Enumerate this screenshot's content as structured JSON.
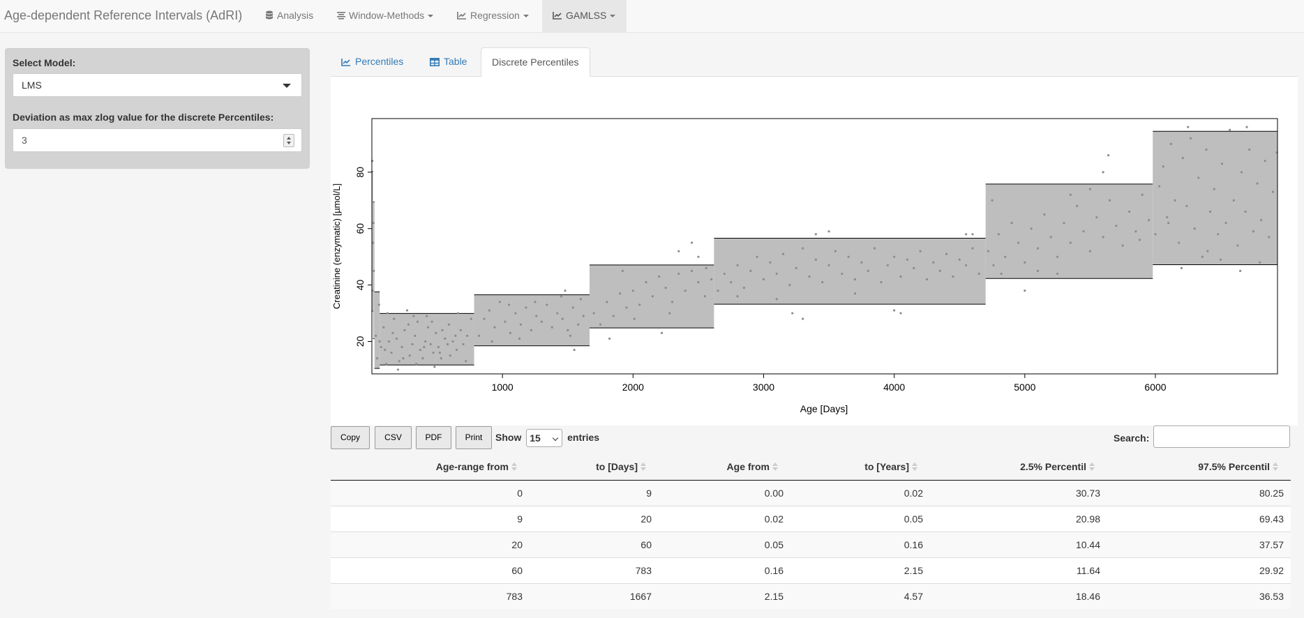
{
  "navbar": {
    "brand": "Age-dependent Reference Intervals (AdRI)",
    "items": [
      {
        "label": "Analysis",
        "icon": "database-icon"
      },
      {
        "label": "Window-Methods",
        "icon": "align-center-icon"
      },
      {
        "label": "Regression",
        "icon": "line-chart-icon"
      },
      {
        "label": "GAMLSS",
        "icon": "line-chart-icon"
      }
    ]
  },
  "sidebar": {
    "model_label": "Select Model:",
    "model_value": "LMS",
    "deviation_label": "Deviation as max zlog value for the discrete Percentiles:",
    "deviation_value": "3"
  },
  "tabs": [
    {
      "label": "Percentiles",
      "icon": "line-chart-icon"
    },
    {
      "label": "Table",
      "icon": "table-icon"
    },
    {
      "label": "Discrete Percentiles",
      "icon": ""
    }
  ],
  "chart_data": {
    "type": "scatter",
    "xlabel": "Age [Days]",
    "ylabel": "Creatinine (enzymatic) [µmol/L]",
    "xlim": [
      0,
      6935
    ],
    "ylim": [
      8.5,
      99
    ],
    "xticks": [
      "1000",
      "2000",
      "3000",
      "4000",
      "5000",
      "6000"
    ],
    "yticks": [
      "20",
      "40",
      "60",
      "80"
    ],
    "point_color": "#8c8c8c",
    "band_color": "#bebebe",
    "bands": [
      {
        "from": 0,
        "to": 9,
        "low": 30.73,
        "high": 80.25
      },
      {
        "from": 9,
        "to": 20,
        "low": 20.98,
        "high": 69.43
      },
      {
        "from": 20,
        "to": 60,
        "low": 10.44,
        "high": 37.57
      },
      {
        "from": 60,
        "to": 783,
        "low": 11.64,
        "high": 29.92
      },
      {
        "from": 783,
        "to": 1667,
        "low": 18.46,
        "high": 36.53
      },
      {
        "from": 1667,
        "to": 2620,
        "low": 24.8,
        "high": 47.1
      },
      {
        "from": 2620,
        "to": 4700,
        "low": 33.2,
        "high": 56.6
      },
      {
        "from": 4700,
        "to": 5980,
        "low": 42.3,
        "high": 75.8
      },
      {
        "from": 5980,
        "to": 6935,
        "low": 47.2,
        "high": 94.5
      }
    ],
    "points": [
      [
        5,
        38
      ],
      [
        8,
        55
      ],
      [
        12,
        62
      ],
      [
        3,
        84
      ],
      [
        15,
        45
      ],
      [
        30,
        22
      ],
      [
        40,
        14
      ],
      [
        55,
        33
      ],
      [
        70,
        18
      ],
      [
        90,
        25
      ],
      [
        110,
        12
      ],
      [
        130,
        20
      ],
      [
        150,
        16
      ],
      [
        170,
        28
      ],
      [
        190,
        21
      ],
      [
        210,
        13
      ],
      [
        230,
        18
      ],
      [
        250,
        24
      ],
      [
        270,
        31
      ],
      [
        290,
        15
      ],
      [
        310,
        19
      ],
      [
        330,
        22
      ],
      [
        350,
        27
      ],
      [
        370,
        17
      ],
      [
        390,
        14
      ],
      [
        410,
        20
      ],
      [
        430,
        25
      ],
      [
        450,
        19
      ],
      [
        470,
        16
      ],
      [
        490,
        23
      ],
      [
        510,
        18
      ],
      [
        530,
        14
      ],
      [
        560,
        21
      ],
      [
        590,
        26
      ],
      [
        620,
        20
      ],
      [
        650,
        17
      ],
      [
        680,
        24
      ],
      [
        700,
        19
      ],
      [
        730,
        22
      ],
      [
        760,
        28
      ],
      [
        120,
        30
      ],
      [
        200,
        10
      ],
      [
        280,
        26
      ],
      [
        340,
        12
      ],
      [
        420,
        29
      ],
      [
        480,
        11
      ],
      [
        540,
        24
      ],
      [
        600,
        15
      ],
      [
        660,
        30
      ],
      [
        720,
        13
      ],
      [
        60,
        20
      ],
      [
        100,
        17
      ],
      [
        160,
        23
      ],
      [
        240,
        14
      ],
      [
        320,
        29
      ],
      [
        400,
        18
      ],
      [
        460,
        27
      ],
      [
        520,
        16
      ],
      [
        580,
        19
      ],
      [
        640,
        22
      ],
      [
        820,
        22
      ],
      [
        860,
        28
      ],
      [
        900,
        31
      ],
      [
        940,
        25
      ],
      [
        980,
        34
      ],
      [
        1020,
        27
      ],
      [
        1060,
        23
      ],
      [
        1100,
        30
      ],
      [
        1140,
        26
      ],
      [
        1180,
        32
      ],
      [
        1220,
        24
      ],
      [
        1260,
        29
      ],
      [
        1300,
        27
      ],
      [
        1340,
        33
      ],
      [
        1380,
        25
      ],
      [
        1420,
        30
      ],
      [
        1460,
        28
      ],
      [
        1500,
        24
      ],
      [
        1540,
        32
      ],
      [
        1580,
        26
      ],
      [
        1620,
        29
      ],
      [
        1450,
        36
      ],
      [
        1480,
        38
      ],
      [
        1520,
        22
      ],
      [
        1550,
        17
      ],
      [
        1600,
        35
      ],
      [
        1130,
        21
      ],
      [
        1050,
        33
      ],
      [
        920,
        20
      ],
      [
        1250,
        34
      ],
      [
        1700,
        30
      ],
      [
        1750,
        26
      ],
      [
        1800,
        34
      ],
      [
        1850,
        29
      ],
      [
        1900,
        37
      ],
      [
        1950,
        32
      ],
      [
        2000,
        38
      ],
      [
        2050,
        33
      ],
      [
        2100,
        41
      ],
      [
        2150,
        36
      ],
      [
        2200,
        43
      ],
      [
        2250,
        39
      ],
      [
        2300,
        34
      ],
      [
        2350,
        44
      ],
      [
        2400,
        38
      ],
      [
        2450,
        45
      ],
      [
        2500,
        41
      ],
      [
        2550,
        36
      ],
      [
        2600,
        42
      ],
      [
        1820,
        21
      ],
      [
        2220,
        23
      ],
      [
        2350,
        52
      ],
      [
        2450,
        55
      ],
      [
        2500,
        50
      ],
      [
        2010,
        28
      ],
      [
        1920,
        45
      ],
      [
        2280,
        30
      ],
      [
        2560,
        46
      ],
      [
        2650,
        38
      ],
      [
        2700,
        44
      ],
      [
        2750,
        41
      ],
      [
        2800,
        47
      ],
      [
        2850,
        39
      ],
      [
        2900,
        45
      ],
      [
        2950,
        50
      ],
      [
        3000,
        42
      ],
      [
        3050,
        48
      ],
      [
        3100,
        44
      ],
      [
        3150,
        51
      ],
      [
        3200,
        40
      ],
      [
        3250,
        46
      ],
      [
        3300,
        53
      ],
      [
        3350,
        43
      ],
      [
        3400,
        49
      ],
      [
        3450,
        41
      ],
      [
        3500,
        47
      ],
      [
        3550,
        52
      ],
      [
        3600,
        44
      ],
      [
        3650,
        50
      ],
      [
        3700,
        42
      ],
      [
        3750,
        48
      ],
      [
        3800,
        45
      ],
      [
        3850,
        53
      ],
      [
        3900,
        41
      ],
      [
        3950,
        47
      ],
      [
        4000,
        50
      ],
      [
        4050,
        43
      ],
      [
        4100,
        49
      ],
      [
        4150,
        46
      ],
      [
        4200,
        52
      ],
      [
        4250,
        42
      ],
      [
        4300,
        48
      ],
      [
        4350,
        45
      ],
      [
        4400,
        51
      ],
      [
        4450,
        43
      ],
      [
        4500,
        49
      ],
      [
        4550,
        47
      ],
      [
        4600,
        53
      ],
      [
        4650,
        44
      ],
      [
        3220,
        30
      ],
      [
        3300,
        28
      ],
      [
        3400,
        58
      ],
      [
        3500,
        59
      ],
      [
        4000,
        31
      ],
      [
        4050,
        30
      ],
      [
        4550,
        58
      ],
      [
        4600,
        58
      ],
      [
        3100,
        35
      ],
      [
        2800,
        36
      ],
      [
        3700,
        37
      ],
      [
        4720,
        52
      ],
      [
        4760,
        47
      ],
      [
        4800,
        58
      ],
      [
        4850,
        50
      ],
      [
        4900,
        62
      ],
      [
        4950,
        55
      ],
      [
        5000,
        48
      ],
      [
        5050,
        60
      ],
      [
        5100,
        53
      ],
      [
        5150,
        65
      ],
      [
        5200,
        57
      ],
      [
        5250,
        50
      ],
      [
        5300,
        62
      ],
      [
        5350,
        55
      ],
      [
        5400,
        68
      ],
      [
        5450,
        59
      ],
      [
        5500,
        52
      ],
      [
        5550,
        64
      ],
      [
        5600,
        57
      ],
      [
        5650,
        70
      ],
      [
        5700,
        61
      ],
      [
        5750,
        54
      ],
      [
        5800,
        66
      ],
      [
        5850,
        59
      ],
      [
        5900,
        72
      ],
      [
        5950,
        63
      ],
      [
        4820,
        44
      ],
      [
        5000,
        38
      ],
      [
        5250,
        44
      ],
      [
        5500,
        74
      ],
      [
        5600,
        80
      ],
      [
        5640,
        86
      ],
      [
        5880,
        56
      ],
      [
        4750,
        70
      ],
      [
        5100,
        45
      ],
      [
        5350,
        72
      ],
      [
        6000,
        58
      ],
      [
        6030,
        75
      ],
      [
        6060,
        82
      ],
      [
        6090,
        64
      ],
      [
        6120,
        90
      ],
      [
        6150,
        70
      ],
      [
        6180,
        55
      ],
      [
        6210,
        85
      ],
      [
        6240,
        68
      ],
      [
        6270,
        92
      ],
      [
        6300,
        60
      ],
      [
        6330,
        78
      ],
      [
        6360,
        50
      ],
      [
        6390,
        88
      ],
      [
        6420,
        66
      ],
      [
        6450,
        74
      ],
      [
        6480,
        58
      ],
      [
        6510,
        83
      ],
      [
        6540,
        62
      ],
      [
        6570,
        95
      ],
      [
        6600,
        70
      ],
      [
        6630,
        54
      ],
      [
        6660,
        80
      ],
      [
        6690,
        66
      ],
      [
        6720,
        88
      ],
      [
        6750,
        59
      ],
      [
        6780,
        76
      ],
      [
        6810,
        63
      ],
      [
        6840,
        84
      ],
      [
        6870,
        57
      ],
      [
        6900,
        73
      ],
      [
        6930,
        87
      ],
      [
        6200,
        46
      ],
      [
        6250,
        96
      ],
      [
        6650,
        45
      ],
      [
        6700,
        96
      ],
      [
        6100,
        62
      ],
      [
        6400,
        52
      ],
      [
        6800,
        48
      ],
      [
        6500,
        49
      ]
    ]
  },
  "table_controls": {
    "copy": "Copy",
    "csv": "CSV",
    "pdf": "PDF",
    "print": "Print",
    "show_label": "Show",
    "entries_value": "15",
    "entries_label": "entries",
    "search_label": "Search:"
  },
  "table": {
    "headers": [
      "Age-range from",
      "to [Days]",
      "Age from",
      "to [Years]",
      "2.5% Percentil",
      "97.5% Percentil"
    ],
    "rows": [
      [
        "0",
        "9",
        "0.00",
        "0.02",
        "30.73",
        "80.25"
      ],
      [
        "9",
        "20",
        "0.02",
        "0.05",
        "20.98",
        "69.43"
      ],
      [
        "20",
        "60",
        "0.05",
        "0.16",
        "10.44",
        "37.57"
      ],
      [
        "60",
        "783",
        "0.16",
        "2.15",
        "11.64",
        "29.92"
      ],
      [
        "783",
        "1667",
        "2.15",
        "4.57",
        "18.46",
        "36.53"
      ]
    ]
  }
}
